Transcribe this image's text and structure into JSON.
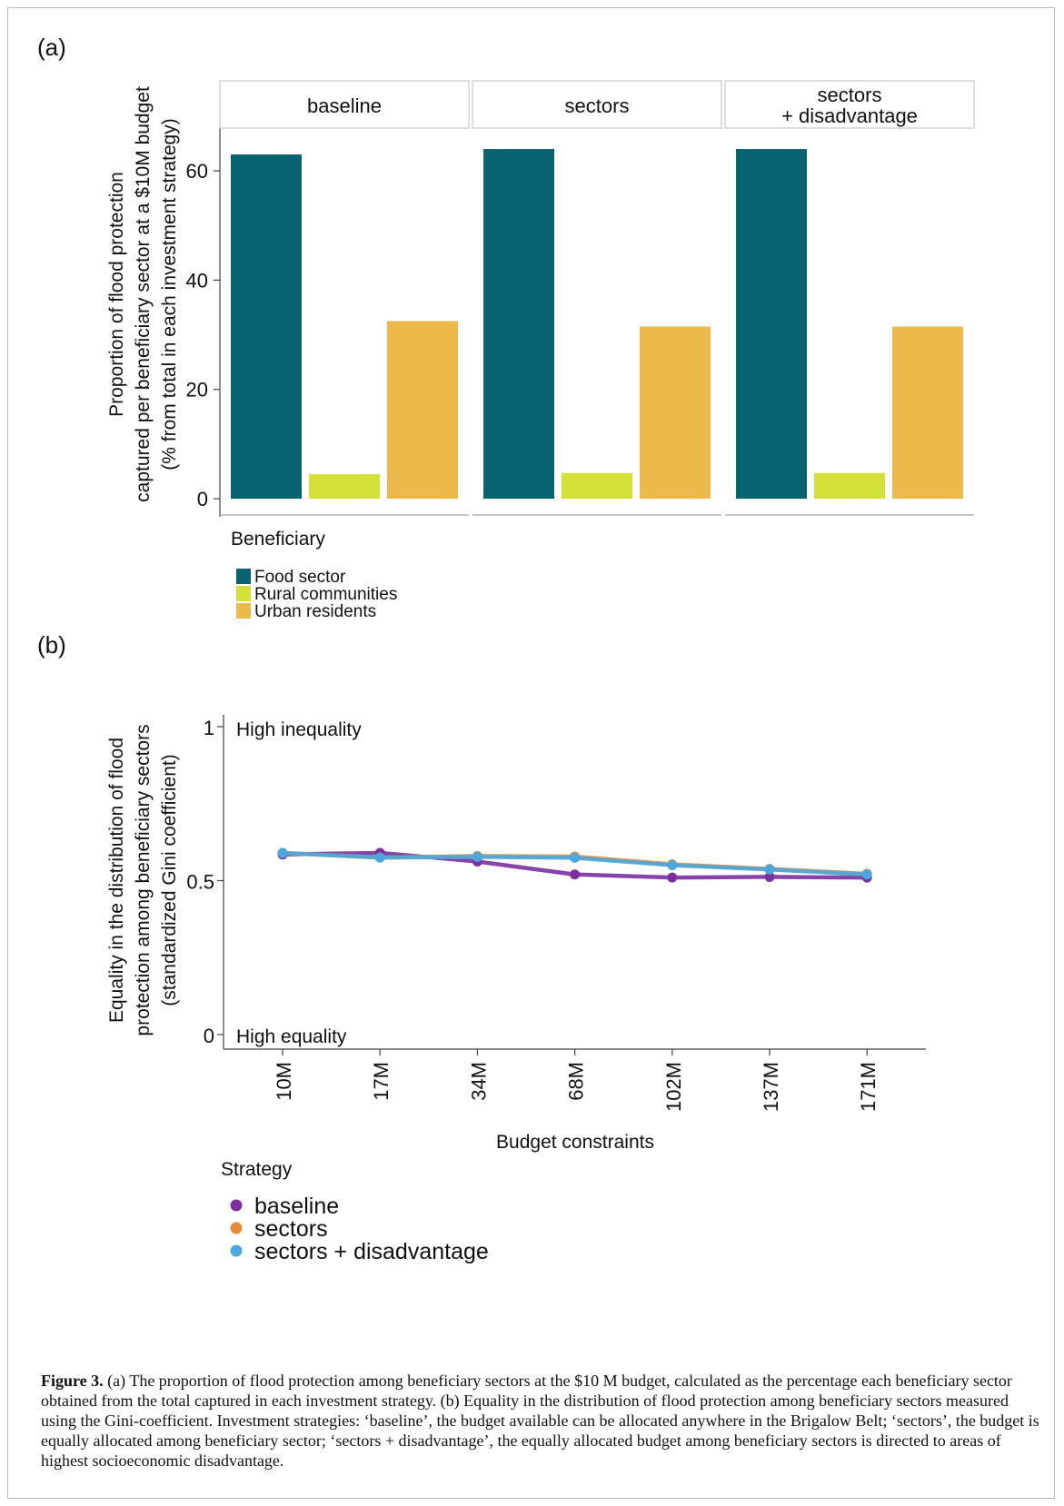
{
  "chart_data": [
    {
      "panel_label": "(a)",
      "type": "bar",
      "facets": [
        "baseline",
        "sectors",
        "sectors\n+ disadvantage"
      ],
      "categories": [
        "Food sector",
        "Rural communities",
        "Urban residents"
      ],
      "series": [
        {
          "facet": "baseline",
          "values": [
            63,
            4.5,
            32.5
          ]
        },
        {
          "facet": "sectors",
          "values": [
            64,
            4.7,
            31.5
          ]
        },
        {
          "facet": "sectors + disadvantage",
          "values": [
            64,
            4.7,
            31.5
          ]
        }
      ],
      "colors": [
        "#06636f",
        "#d3e038",
        "#ecba4b"
      ],
      "ylabel": "Proportion of flood protection\ncaptured per beneficiary sector at a $10M budget\n(% from total in each investment strategy)",
      "yticks": [
        0,
        20,
        40,
        60
      ],
      "ylim": [
        0,
        67
      ],
      "legend_title": "Beneficiary",
      "legend": [
        "Food sector",
        "Rural communities",
        "Urban residents"
      ],
      "legend_position": "bottom-left",
      "grid": false
    },
    {
      "panel_label": "(b)",
      "type": "line",
      "categories": [
        "10M",
        "17M",
        "34M",
        "68M",
        "102M",
        "137M",
        "171M"
      ],
      "series": [
        {
          "name": "baseline",
          "color": "#7b2fa0",
          "values": [
            0.585,
            0.59,
            0.562,
            0.52,
            0.51,
            0.512,
            0.51
          ]
        },
        {
          "name": "sectors",
          "color": "#e58a3a",
          "values": [
            0.59,
            0.575,
            0.58,
            0.578,
            0.553,
            0.538,
            0.522
          ]
        },
        {
          "name": "sectors + disadvantage",
          "color": "#4aa8dc",
          "values": [
            0.59,
            0.575,
            0.577,
            0.574,
            0.55,
            0.536,
            0.52
          ]
        }
      ],
      "xlabel": "Budget constraints",
      "ylabel": "Equality in the distribution of flood\nprotection among beneficiary sectors\n(standardized Gini coefficient)",
      "yticks": [
        0,
        0.5,
        1
      ],
      "ytick_labels": [
        "0",
        "0.5",
        "1"
      ],
      "ylim": [
        0,
        1
      ],
      "annotations": {
        "top": "High inequality",
        "bottom": "High equality"
      },
      "legend_title": "Strategy",
      "legend_position": "bottom-left",
      "grid": false
    }
  ],
  "caption": {
    "label": "Figure 3.",
    "text": " (a) The proportion of flood protection among beneficiary sectors at the $10 M budget, calculated as the percentage each beneficiary sector obtained from the total captured in each investment strategy. (b) Equality in the distribution of flood protection among beneficiary sectors measured using the Gini-coefficient. Investment strategies: ‘baseline’, the budget available can be allocated anywhere in the Brigalow Belt; ‘sectors’, the budget is equally allocated among beneficiary sector; ‘sectors + disadvantage’, the equally allocated budget among beneficiary sectors is directed to areas of highest socioeconomic disadvantage."
  }
}
